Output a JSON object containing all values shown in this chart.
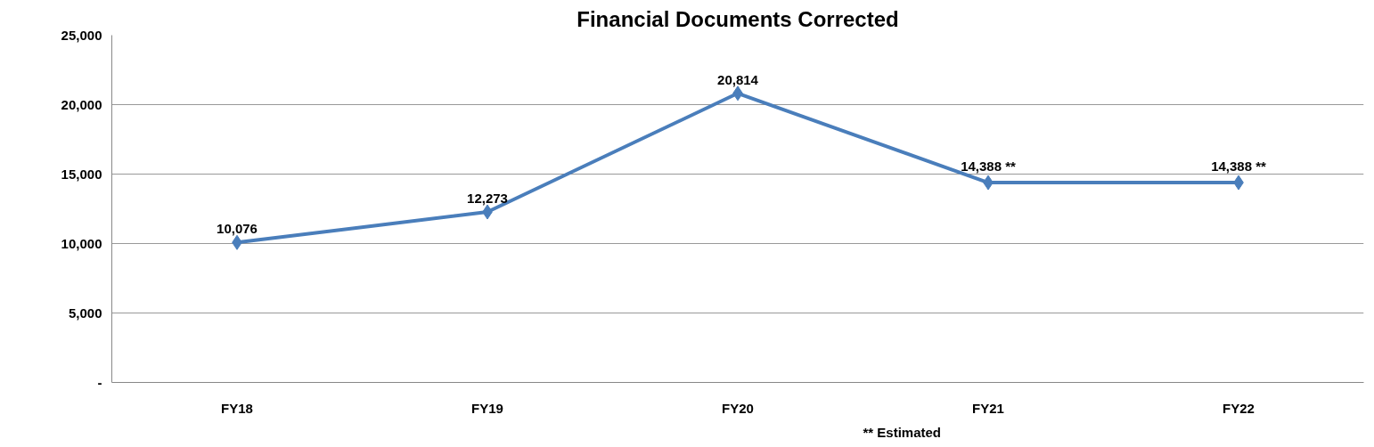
{
  "chart_data": {
    "type": "line",
    "title": "Financial Documents Corrected",
    "categories": [
      "FY18",
      "FY19",
      "FY20",
      "FY21",
      "FY22"
    ],
    "series": [
      {
        "color": "#4a7ebb",
        "values": [
          10076,
          12273,
          20814,
          14388,
          14388
        ],
        "value_labels": [
          "10,076",
          "12,273",
          "20,814",
          "14,388 **",
          "14,388 **"
        ]
      }
    ],
    "ylim": [
      0,
      25000
    ],
    "yticks": [
      {
        "value": 0,
        "label": "-"
      },
      {
        "value": 5000,
        "label": "5,000"
      },
      {
        "value": 10000,
        "label": "10,000"
      },
      {
        "value": 15000,
        "label": "15,000"
      },
      {
        "value": 20000,
        "label": "20,000"
      },
      {
        "value": 25000,
        "label": "25,000"
      }
    ],
    "grid": "y",
    "marker": "diamond",
    "line_style": "solid",
    "annotations": [
      "** Estimated"
    ]
  }
}
